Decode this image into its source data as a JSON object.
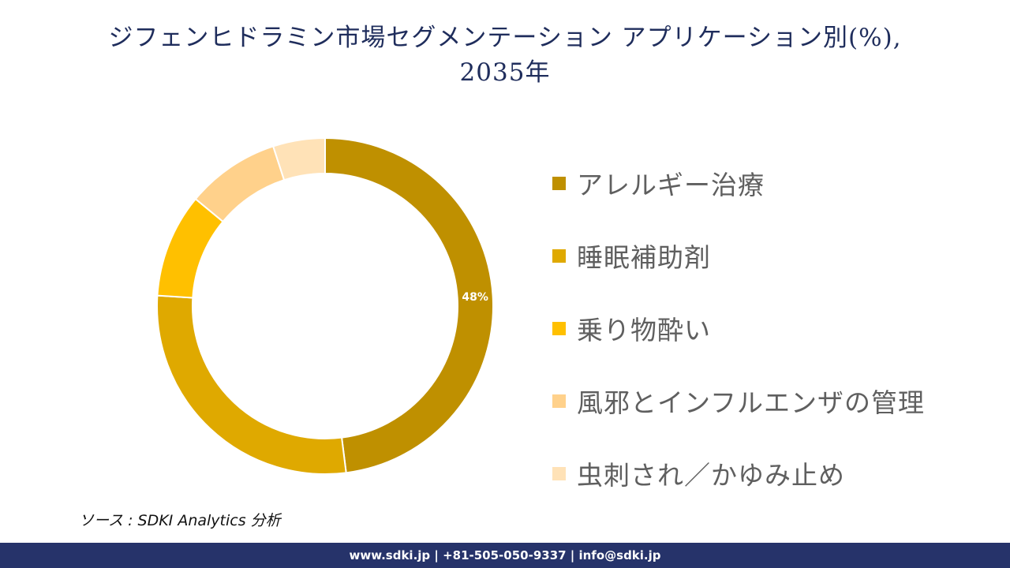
{
  "title": "ジフェンヒドラミン市場セグメンテーション アプリケーション別(%),",
  "title_line2": "2035年",
  "source": "ソース : SDKI Analytics  分析",
  "footer": "www.sdki.jp | +81-505-050-9337 | info@sdki.jp",
  "chart_data": {
    "type": "pie",
    "variant": "donut",
    "title": "ジフェンヒドラミン市場セグメンテーション アプリケーション別(%), 2035年",
    "categories": [
      "アレルギー治療",
      "睡眠補助剤",
      "乗り物酔い",
      "風邪とインフルエンザの管理",
      "虫刺され／かゆみ止め"
    ],
    "values": [
      48,
      28,
      10,
      9,
      5
    ],
    "colors": [
      "#bf9000",
      "#dfa900",
      "#ffc000",
      "#ffd18b",
      "#ffe2b7"
    ],
    "data_labels": [
      "48%",
      "",
      "",
      "",
      ""
    ],
    "legend_position": "right"
  }
}
